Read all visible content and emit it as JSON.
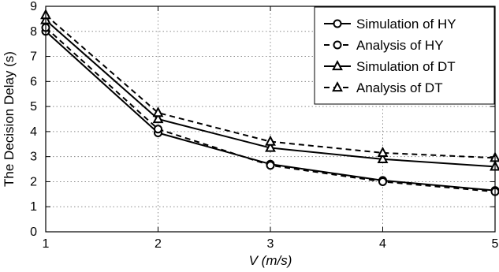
{
  "chart_data": {
    "type": "line",
    "xlabel": "V (m/s)",
    "ylabel": "The Decision Delay (s)",
    "x": [
      1,
      2,
      3,
      4,
      5
    ],
    "xlim": [
      1,
      5
    ],
    "ylim": [
      0,
      9
    ],
    "xticks": [
      "1",
      "2",
      "3",
      "4",
      "5"
    ],
    "yticks": [
      "0",
      "1",
      "2",
      "3",
      "4",
      "5",
      "6",
      "7",
      "8",
      "9"
    ],
    "grid": true,
    "legend_position": "top-right",
    "series": [
      {
        "name": "Simulation of HY",
        "values": [
          8.0,
          3.95,
          2.7,
          2.05,
          1.65
        ],
        "marker": "circle",
        "linestyle": "solid",
        "color": "#000000"
      },
      {
        "name": "Analysis of HY",
        "values": [
          8.15,
          4.1,
          2.65,
          2.0,
          1.6
        ],
        "marker": "circle",
        "linestyle": "dashed",
        "color": "#000000"
      },
      {
        "name": "Simulation of DT",
        "values": [
          8.45,
          4.5,
          3.35,
          2.9,
          2.6
        ],
        "marker": "triangle",
        "linestyle": "solid",
        "color": "#000000"
      },
      {
        "name": "Analysis of DT",
        "values": [
          8.65,
          4.75,
          3.6,
          3.15,
          2.95
        ],
        "marker": "triangle",
        "linestyle": "dashed",
        "color": "#000000"
      }
    ]
  }
}
